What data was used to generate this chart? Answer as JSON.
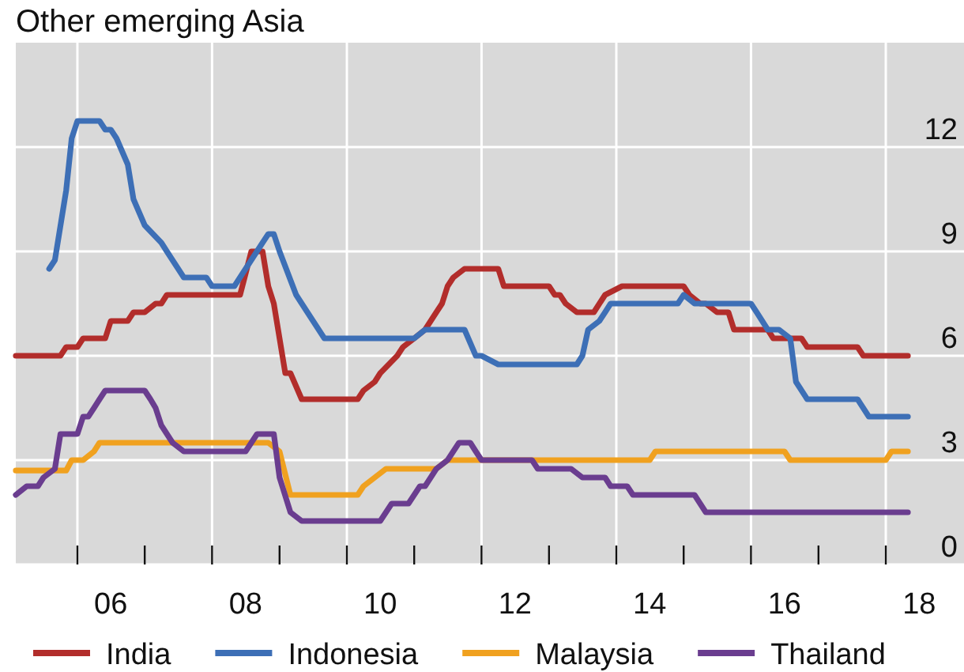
{
  "chart_data": {
    "type": "line",
    "title": "Other emerging Asia",
    "xlim": [
      "2005-02",
      "2019-03"
    ],
    "xticks": [
      {
        "value": "2006",
        "label": null
      },
      {
        "value": "2006-07",
        "label": "06"
      },
      {
        "value": "2007",
        "label": null
      },
      {
        "value": "2008",
        "label": null
      },
      {
        "value": "2008-07",
        "label": "08"
      },
      {
        "value": "2009",
        "label": null
      },
      {
        "value": "2010",
        "label": null
      },
      {
        "value": "2010-07",
        "label": "10"
      },
      {
        "value": "2011",
        "label": null
      },
      {
        "value": "2012",
        "label": null
      },
      {
        "value": "2012-07",
        "label": "12"
      },
      {
        "value": "2013",
        "label": null
      },
      {
        "value": "2014",
        "label": null
      },
      {
        "value": "2014-07",
        "label": "14"
      },
      {
        "value": "2015",
        "label": null
      },
      {
        "value": "2016",
        "label": null
      },
      {
        "value": "2016-07",
        "label": "16"
      },
      {
        "value": "2017",
        "label": null
      },
      {
        "value": "2018",
        "label": null
      },
      {
        "value": "2018-07",
        "label": "18"
      }
    ],
    "ylim": [
      0,
      15
    ],
    "yticks": [
      0,
      3,
      6,
      9,
      12
    ],
    "grid": true,
    "legend": "bottom",
    "series": [
      {
        "name": "India",
        "color": "#b22d2b",
        "x": [
          "2005-02",
          "2005-10",
          "2005-11",
          "2006-01",
          "2006-02",
          "2006-06",
          "2006-07",
          "2006-10",
          "2006-11",
          "2007-01",
          "2007-03",
          "2007-04",
          "2007-05",
          "2008-06",
          "2008-08",
          "2008-10",
          "2008-11",
          "2008-12",
          "2009-02",
          "2009-03",
          "2009-05",
          "2010-03",
          "2010-04",
          "2010-06",
          "2010-07",
          "2010-10",
          "2010-11",
          "2011-01",
          "2011-03",
          "2011-05",
          "2011-06",
          "2011-07",
          "2011-08",
          "2011-10",
          "2012-04",
          "2012-05",
          "2013-01",
          "2013-02",
          "2013-03",
          "2013-04",
          "2013-06",
          "2013-09",
          "2013-11",
          "2014-02",
          "2015-01",
          "2015-02",
          "2015-04",
          "2015-05",
          "2015-07",
          "2015-09",
          "2015-10",
          "2016-04",
          "2016-05",
          "2016-10",
          "2016-11",
          "2017-08",
          "2017-09",
          "2018-05"
        ],
        "values": [
          6,
          6,
          6.25,
          6.25,
          6.5,
          6.5,
          7,
          7,
          7.25,
          7.25,
          7.5,
          7.5,
          7.75,
          7.75,
          9,
          9,
          8,
          7.5,
          5.5,
          5.5,
          4.75,
          4.75,
          5,
          5.25,
          5.5,
          6,
          6.25,
          6.5,
          6.75,
          7.25,
          7.5,
          8,
          8.25,
          8.5,
          8.5,
          8,
          8,
          7.75,
          7.75,
          7.5,
          7.25,
          7.25,
          7.75,
          8,
          8,
          7.75,
          7.5,
          7.5,
          7.25,
          7.25,
          6.75,
          6.75,
          6.5,
          6.5,
          6.25,
          6.25,
          6,
          6
        ]
      },
      {
        "name": "Indonesia",
        "color": "#3d6fb6",
        "x": [
          "2005-08",
          "2005-09",
          "2005-11",
          "2005-12",
          "2006-01",
          "2006-05",
          "2006-06",
          "2006-07",
          "2006-08",
          "2006-10",
          "2006-11",
          "2007-01",
          "2007-04",
          "2007-05",
          "2007-08",
          "2007-12",
          "2008-01",
          "2008-05",
          "2008-07",
          "2008-10",
          "2008-11",
          "2008-12",
          "2009-01",
          "2009-04",
          "2009-06",
          "2009-09",
          "2011-01",
          "2011-03",
          "2011-10",
          "2011-12",
          "2012-01",
          "2012-04",
          "2013-06",
          "2013-07",
          "2013-08",
          "2013-10",
          "2013-11",
          "2013-12",
          "2014-12",
          "2015-01",
          "2015-03",
          "2016-01",
          "2016-02",
          "2016-04",
          "2016-06",
          "2016-08",
          "2016-09",
          "2016-11",
          "2017-08",
          "2017-10",
          "2018-05"
        ],
        "values": [
          8.5,
          8.75,
          10.75,
          12.25,
          12.75,
          12.75,
          12.5,
          12.5,
          12.25,
          11.5,
          10.5,
          9.75,
          9.25,
          9,
          8.25,
          8.25,
          8,
          8,
          8.5,
          9.25,
          9.5,
          9.5,
          9,
          7.75,
          7.25,
          6.5,
          6.5,
          6.75,
          6.75,
          6,
          6,
          5.75,
          5.75,
          6,
          6.75,
          7,
          7.25,
          7.5,
          7.5,
          7.75,
          7.5,
          7.5,
          7.25,
          6.75,
          6.75,
          6.5,
          5.25,
          4.75,
          4.75,
          4.25,
          4.25
        ]
      },
      {
        "name": "Malaysia",
        "color": "#f0a11f",
        "x": [
          "2005-02",
          "2005-11",
          "2005-12",
          "2006-02",
          "2006-04",
          "2006-05",
          "2008-11",
          "2009-01",
          "2009-03",
          "2010-03",
          "2010-04",
          "2010-06",
          "2010-08",
          "2011-05",
          "2011-07",
          "2014-07",
          "2014-08",
          "2016-07",
          "2016-08",
          "2018-01",
          "2018-02",
          "2018-05"
        ],
        "values": [
          2.7,
          2.7,
          3,
          3,
          3.25,
          3.5,
          3.5,
          3.25,
          2,
          2,
          2.25,
          2.5,
          2.75,
          2.75,
          3,
          3,
          3.25,
          3.25,
          3,
          3,
          3.25,
          3.25
        ]
      },
      {
        "name": "Thailand",
        "color": "#6a3d8f",
        "x": [
          "2005-02",
          "2005-04",
          "2005-06",
          "2005-07",
          "2005-09",
          "2005-10",
          "2006-01",
          "2006-02",
          "2006-03",
          "2006-04",
          "2006-05",
          "2006-06",
          "2007-01",
          "2007-02",
          "2007-03",
          "2007-04",
          "2007-06",
          "2007-08",
          "2008-07",
          "2008-09",
          "2008-12",
          "2009-01",
          "2009-03",
          "2009-05",
          "2010-07",
          "2010-09",
          "2010-12",
          "2011-02",
          "2011-03",
          "2011-05",
          "2011-07",
          "2011-09",
          "2011-11",
          "2011-12",
          "2012-01",
          "2012-10",
          "2012-11",
          "2013-05",
          "2013-07",
          "2013-11",
          "2013-12",
          "2014-03",
          "2014-04",
          "2015-03",
          "2015-05",
          "2018-05"
        ],
        "values": [
          2,
          2.25,
          2.25,
          2.5,
          2.75,
          3.75,
          3.75,
          4.25,
          4.25,
          4.5,
          4.75,
          5,
          5,
          4.75,
          4.5,
          4,
          3.5,
          3.25,
          3.25,
          3.75,
          3.75,
          2.5,
          1.5,
          1.25,
          1.25,
          1.75,
          1.75,
          2.25,
          2.25,
          2.75,
          3,
          3.5,
          3.5,
          3.25,
          3,
          3,
          2.75,
          2.75,
          2.5,
          2.5,
          2.25,
          2.25,
          2,
          2,
          1.5,
          1.5
        ]
      }
    ]
  }
}
